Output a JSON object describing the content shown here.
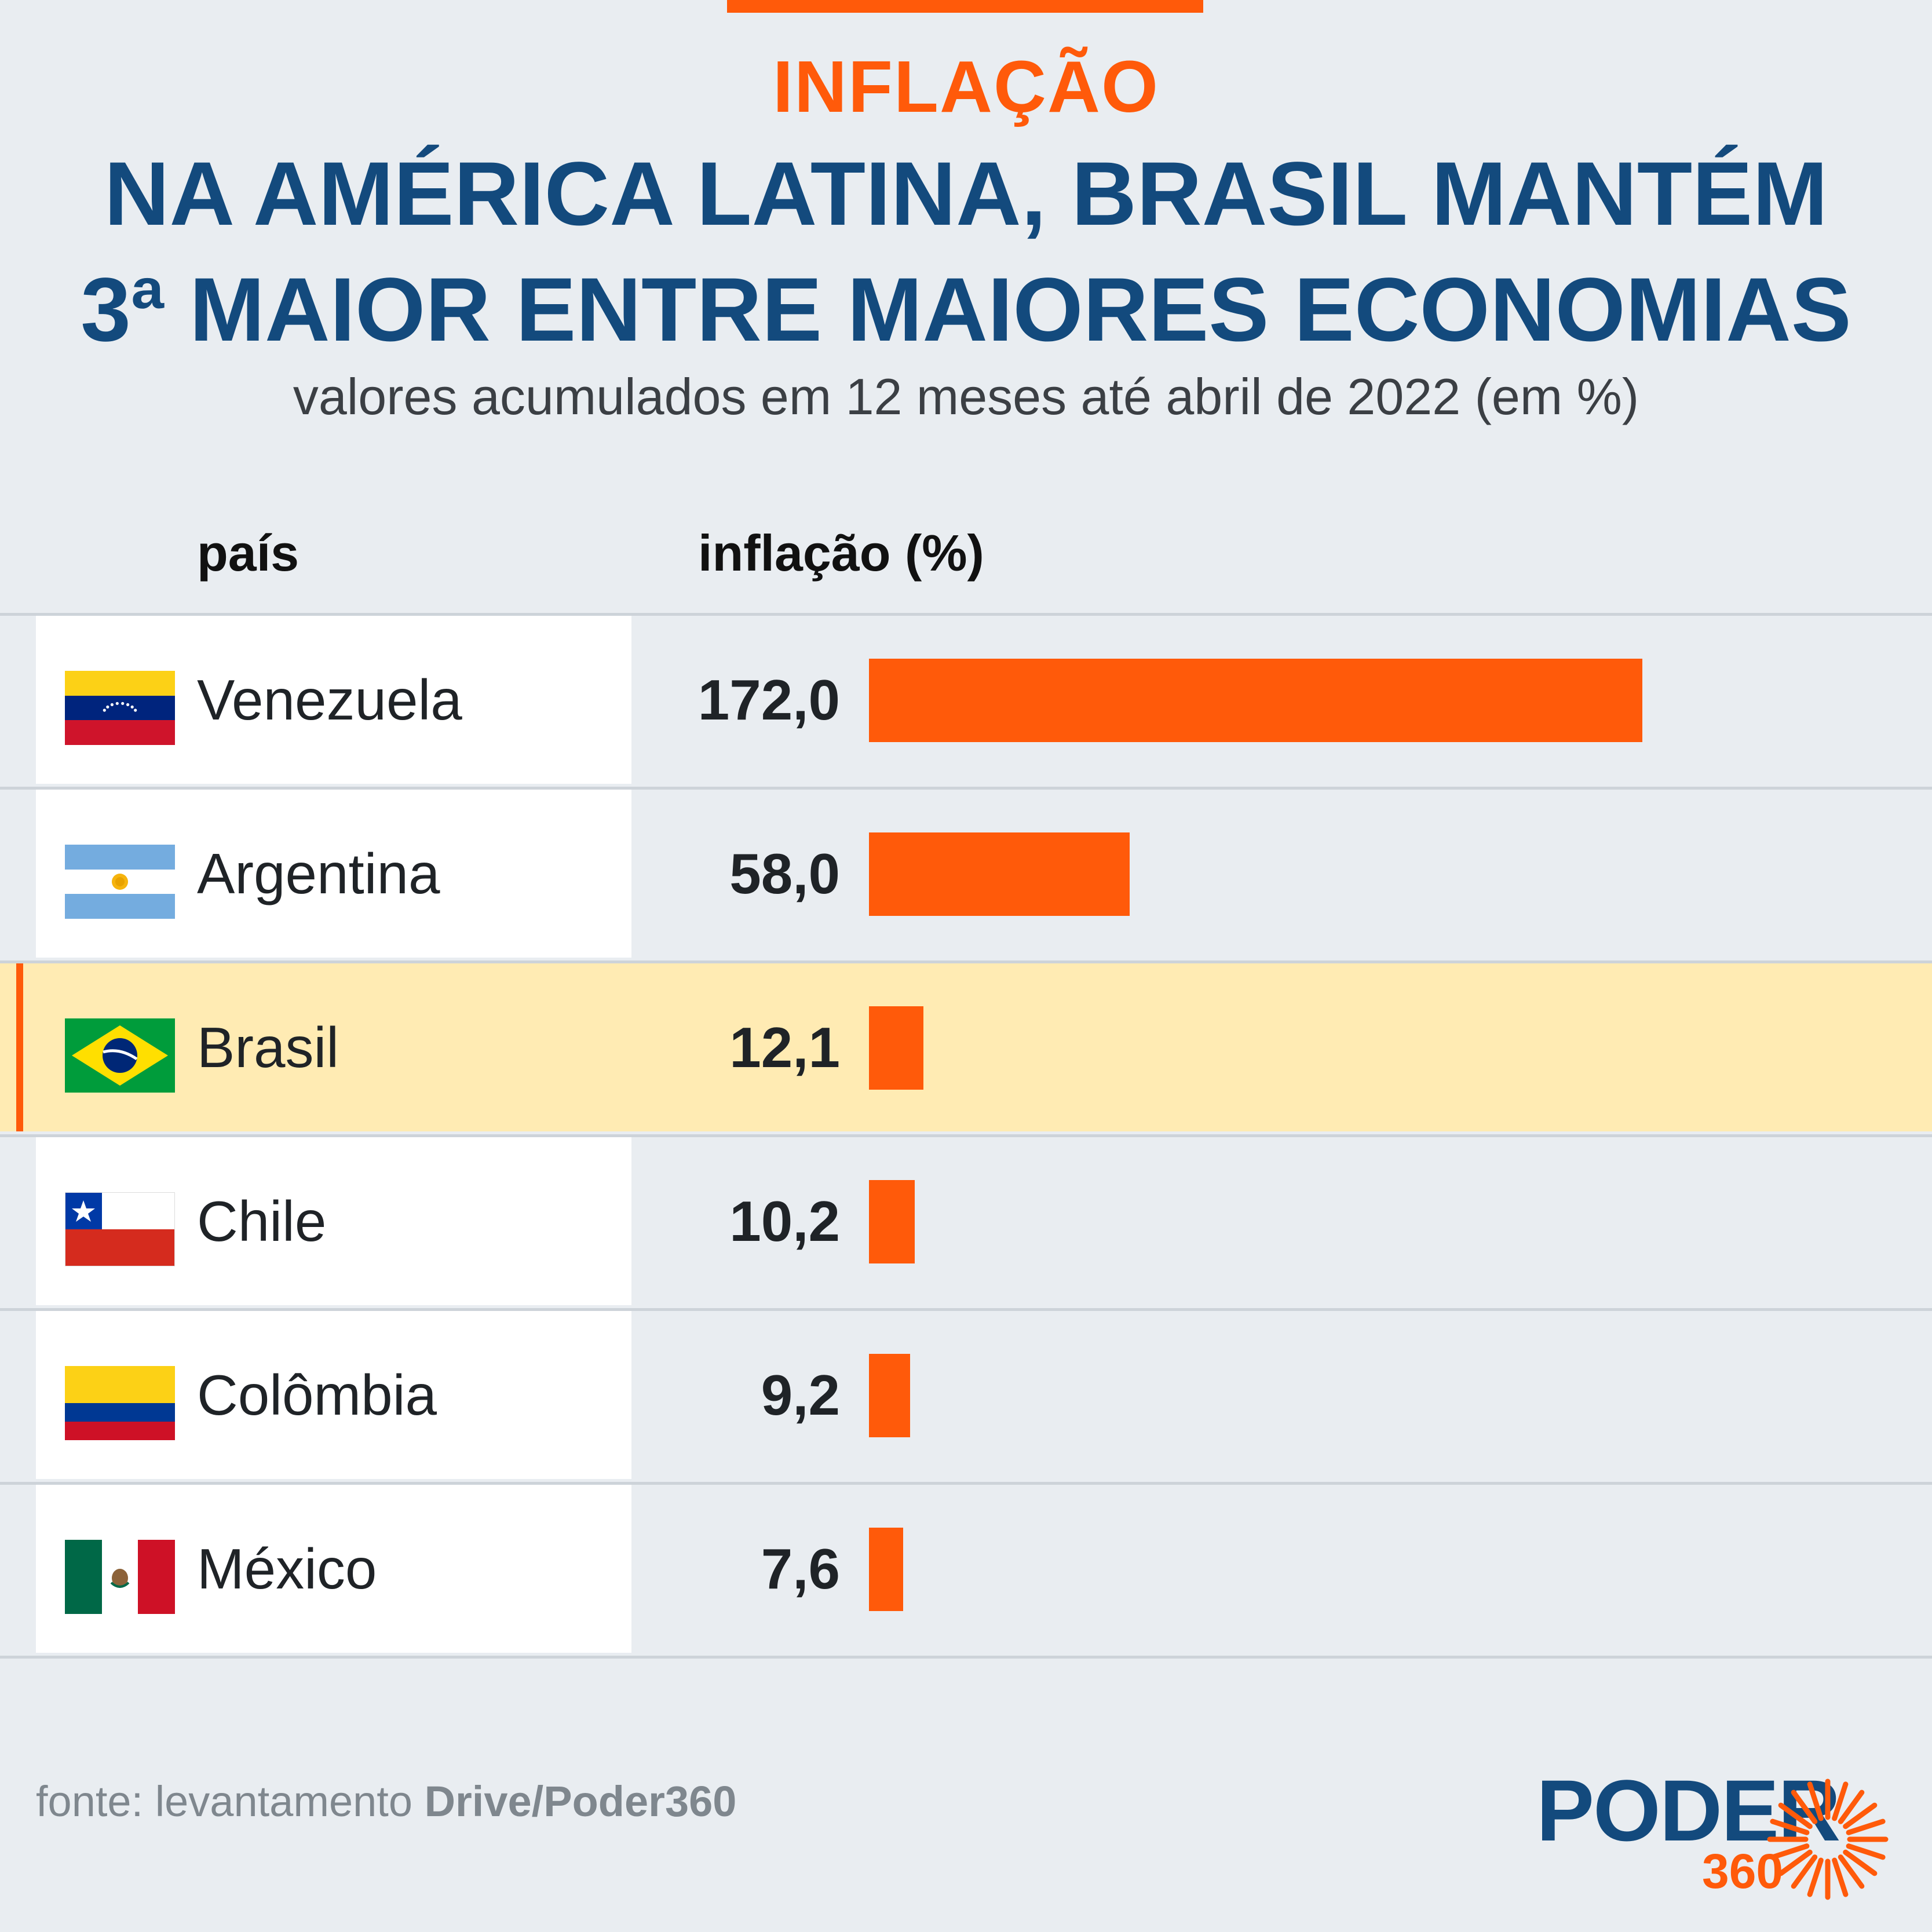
{
  "header": {
    "kicker": "INFLAÇÃO",
    "title_line1": "NA AMÉRICA LATINA, BRASIL MANTÉM",
    "title_line2": "3ª MAIOR ENTRE MAIORES ECONOMIAS",
    "subtitle": "valores acumulados em 12 meses até abril de 2022 (em %)"
  },
  "columns": {
    "country": "país",
    "inflation": "inflação (%)"
  },
  "chart_data": {
    "type": "bar",
    "orientation": "horizontal",
    "title": "NA AMÉRICA LATINA, BRASIL MANTÉM 3ª MAIOR ENTRE MAIORES ECONOMIAS",
    "subtitle": "valores acumulados em 12 meses até abril de 2022 (em %)",
    "categories": [
      "Venezuela",
      "Argentina",
      "Brasil",
      "Chile",
      "Colômbia",
      "México"
    ],
    "values": [
      172.0,
      58.0,
      12.1,
      10.2,
      9.2,
      7.6
    ],
    "value_labels": [
      "172,0",
      "58,0",
      "12,1",
      "10,2",
      "9,2",
      "7,6"
    ],
    "highlighted": "Brasil",
    "bar_color": "#ff5a0a",
    "highlight_color": "#ffebb3",
    "xlabel": "inflação (%)",
    "ylabel": "país"
  },
  "rows": [
    {
      "name": "Venezuela",
      "value_label": "172,0",
      "flag": "venezuela-flag-icon"
    },
    {
      "name": "Argentina",
      "value_label": "58,0",
      "flag": "argentina-flag-icon"
    },
    {
      "name": "Brasil",
      "value_label": "12,1",
      "flag": "brazil-flag-icon"
    },
    {
      "name": "Chile",
      "value_label": "10,2",
      "flag": "chile-flag-icon"
    },
    {
      "name": "Colômbia",
      "value_label": "9,2",
      "flag": "colombia-flag-icon"
    },
    {
      "name": "México",
      "value_label": "7,6",
      "flag": "mexico-flag-icon"
    }
  ],
  "footer": {
    "source_prefix": "fonte: levantamento ",
    "source_name": "Drive/Poder360"
  },
  "logo": {
    "word": "PODER",
    "number": "360"
  },
  "colors": {
    "accent": "#ff5a0a",
    "title": "#134a7d",
    "background": "#e9edf1"
  }
}
